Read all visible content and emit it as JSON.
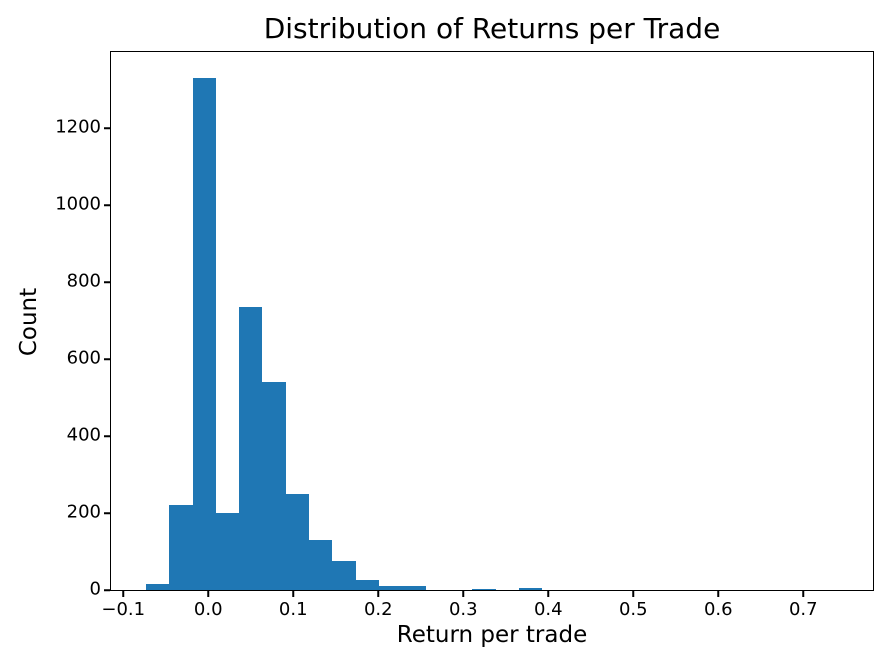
{
  "chart_data": {
    "type": "histogram",
    "title": "Distribution of Returns per Trade",
    "xlabel": "Return per trade",
    "ylabel": "Count",
    "bar_color": "#1f77b4",
    "background_color": "#ffffff",
    "text_color": "#000000",
    "grid": false,
    "legend": false,
    "xlim": [
      -0.115,
      0.782
    ],
    "ylim": [
      0,
      1398
    ],
    "x_ticks": {
      "values": [
        -0.1,
        0.0,
        0.1,
        0.2,
        0.3,
        0.4,
        0.5,
        0.6,
        0.7
      ],
      "labels": [
        "−0.1",
        "0.0",
        "0.1",
        "0.2",
        "0.3",
        "0.4",
        "0.5",
        "0.6",
        "0.7"
      ]
    },
    "y_ticks": {
      "values": [
        0,
        200,
        400,
        600,
        800,
        1000,
        1200
      ],
      "labels": [
        "0",
        "200",
        "400",
        "600",
        "800",
        "1000",
        "1200"
      ]
    },
    "bins": [
      {
        "x0": -0.0733,
        "x1": -0.0459,
        "count": 15
      },
      {
        "x0": -0.0459,
        "x1": -0.0185,
        "count": 220
      },
      {
        "x0": -0.0185,
        "x1": 0.009,
        "count": 1330
      },
      {
        "x0": 0.009,
        "x1": 0.0364,
        "count": 200
      },
      {
        "x0": 0.0364,
        "x1": 0.0638,
        "count": 735
      },
      {
        "x0": 0.0638,
        "x1": 0.0913,
        "count": 540
      },
      {
        "x0": 0.0913,
        "x1": 0.1187,
        "count": 250
      },
      {
        "x0": 0.1187,
        "x1": 0.1461,
        "count": 130
      },
      {
        "x0": 0.1461,
        "x1": 0.1735,
        "count": 75
      },
      {
        "x0": 0.1735,
        "x1": 0.201,
        "count": 25
      },
      {
        "x0": 0.201,
        "x1": 0.2284,
        "count": 10
      },
      {
        "x0": 0.2284,
        "x1": 0.2558,
        "count": 10
      },
      {
        "x0": 0.2558,
        "x1": 0.2833,
        "count": 0
      },
      {
        "x0": 0.2833,
        "x1": 0.3107,
        "count": 0
      },
      {
        "x0": 0.3107,
        "x1": 0.3381,
        "count": 3
      },
      {
        "x0": 0.3381,
        "x1": 0.3655,
        "count": 0
      },
      {
        "x0": 0.3655,
        "x1": 0.393,
        "count": 5
      }
    ]
  }
}
